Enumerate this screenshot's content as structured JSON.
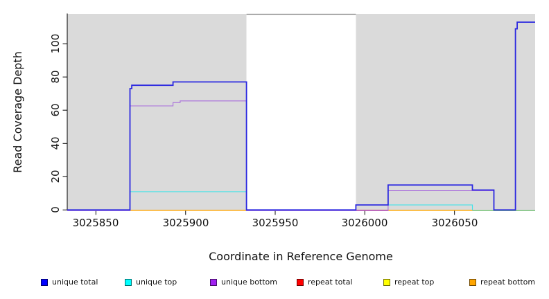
{
  "chart_data": {
    "type": "line",
    "title": "",
    "xlabel": "Coordinate in Reference Genome",
    "ylabel": "Read Coverage Depth",
    "xlim": [
      3025834,
      3026095
    ],
    "ylim": [
      0,
      118
    ],
    "x_ticks": [
      3025850,
      3025900,
      3025950,
      3026000,
      3026050
    ],
    "y_ticks": [
      0,
      20,
      40,
      60,
      80,
      100
    ],
    "grid": false,
    "legend_position": "bottom",
    "background": {
      "shaded_color": "#dadada",
      "shaded_regions": [
        [
          3025834,
          3025934
        ],
        [
          3025995,
          3026095
        ]
      ],
      "gap_region": [
        3025934,
        3025995
      ],
      "gap_color": "#ffffff",
      "gap_top_border_color": "#808080",
      "axis_color": "#000000"
    },
    "series": [
      {
        "name": "unique total",
        "color": "#2b28e0",
        "in_legend": true,
        "segments": [
          [
            [
              3025834,
              0
            ],
            [
              3025869,
              0
            ],
            [
              3025869,
              73
            ],
            [
              3025870,
              73
            ],
            [
              3025870,
              75
            ],
            [
              3025893,
              75
            ],
            [
              3025893,
              77
            ],
            [
              3025934,
              77
            ],
            [
              3025934,
              0
            ],
            [
              3025995,
              0
            ],
            [
              3025995,
              3
            ],
            [
              3026013,
              3
            ],
            [
              3026013,
              15
            ],
            [
              3026060,
              15
            ],
            [
              3026060,
              12
            ],
            [
              3026072,
              12
            ],
            [
              3026072,
              0
            ],
            [
              3026084,
              0
            ],
            [
              3026084,
              109
            ],
            [
              3026085,
              109
            ],
            [
              3026085,
              113
            ],
            [
              3026095,
              113
            ]
          ]
        ]
      },
      {
        "name": "unique top",
        "color": "#3fe3e8",
        "in_legend": true,
        "segments": [
          [
            [
              3025834,
              0
            ],
            [
              3025869,
              0
            ],
            [
              3025869,
              11
            ],
            [
              3025934,
              11
            ],
            [
              3025934,
              0
            ],
            [
              3025995,
              0
            ],
            [
              3025995,
              3
            ],
            [
              3026060,
              3
            ],
            [
              3026060,
              0
            ]
          ]
        ]
      },
      {
        "name": "unique bottom",
        "color": "#a86bdc",
        "in_legend": true,
        "segments": [
          [
            [
              3025834,
              0
            ],
            [
              3025869,
              0
            ],
            [
              3025869,
              63
            ],
            [
              3025893,
              63
            ],
            [
              3025893,
              65
            ],
            [
              3025897,
              65
            ],
            [
              3025897,
              66
            ],
            [
              3025934,
              66
            ],
            [
              3025934,
              0
            ],
            [
              3026013,
              0
            ],
            [
              3026013,
              12
            ],
            [
              3026072,
              12
            ],
            [
              3026072,
              0
            ],
            [
              3026095,
              0
            ]
          ]
        ]
      },
      {
        "name": "repeat total",
        "color": "#dc4060",
        "in_legend": true,
        "segments": [
          [
            [
              3025990,
              0
            ],
            [
              3026013,
              0
            ]
          ]
        ]
      },
      {
        "name": "repeat top",
        "color": "#ffff00",
        "in_legend": true,
        "segments": [
          [
            [
              3026013,
              0
            ],
            [
              3026060,
              0
            ]
          ]
        ]
      },
      {
        "name": "repeat bottom",
        "color": "#ffa500",
        "in_legend": true,
        "segments": [
          [
            [
              3025869,
              0
            ],
            [
              3025934,
              0
            ]
          ],
          [
            [
              3026013,
              0
            ],
            [
              3026060,
              0
            ]
          ]
        ]
      },
      {
        "name": "zero-line overlap",
        "color": "#7cc87c",
        "in_legend": false,
        "segments": [
          [
            [
              3026060,
              0
            ],
            [
              3026095,
              0
            ]
          ]
        ]
      }
    ],
    "legend_items": [
      {
        "label": "unique total",
        "color": "#0000ff"
      },
      {
        "label": "unique top",
        "color": "#00ffff"
      },
      {
        "label": "unique bottom",
        "color": "#a020f0"
      },
      {
        "label": "repeat total",
        "color": "#ff0000"
      },
      {
        "label": "repeat top",
        "color": "#ffff00"
      },
      {
        "label": "repeat bottom",
        "color": "#ffa500"
      }
    ]
  }
}
